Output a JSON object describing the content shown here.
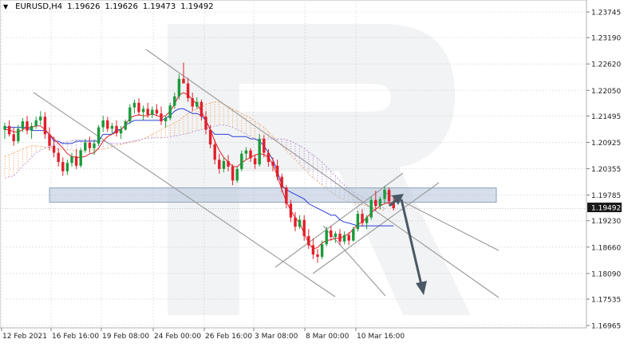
{
  "header": {
    "symbol": "EURUSD,H4",
    "open": "1.19626",
    "high": "1.19626",
    "low": "1.19473",
    "close": "1.19492"
  },
  "current_price_label": "1.19492",
  "chart_data": {
    "type": "candlestick",
    "symbol": "EURUSD",
    "timeframe": "H4",
    "y_ticks": [
      "1.23745",
      "1.23190",
      "1.22620",
      "1.22050",
      "1.21495",
      "1.20925",
      "1.20355",
      "1.19785",
      "1.19230",
      "1.18660",
      "1.18090",
      "1.17535",
      "1.16965"
    ],
    "x_ticks": [
      "12 Feb 2021",
      "16 Feb 16:00",
      "19 Feb 08:00",
      "24 Feb 00:00",
      "26 Feb 16:00",
      "3 Mar 08:00",
      "8 Mar 00:00",
      "10 Mar 16:00"
    ],
    "ylim": [
      1.16965,
      1.23745
    ],
    "last_price": 1.19492,
    "resistance_zone": [
      1.1963,
      1.1994
    ],
    "forecast": {
      "from": 1.1975,
      "to": 1.1765
    },
    "colors": {
      "bull": "#1a9a3a",
      "bear": "#e0202a",
      "kijun": "#2b3fd8",
      "tenkan": "#e0202a",
      "kumo_bull": "#f0a060",
      "kumo_bear": "#b28ad0",
      "channel": "#999999",
      "zone": "#b9c8dc",
      "arrow": "#4a5866"
    },
    "candles": [
      [
        1.212,
        1.2135,
        1.21,
        1.2128
      ],
      [
        1.2128,
        1.214,
        1.2105,
        1.211
      ],
      [
        1.211,
        1.2125,
        1.2085,
        1.2095
      ],
      [
        1.2095,
        1.213,
        1.209,
        1.2122
      ],
      [
        1.2122,
        1.2145,
        1.2115,
        1.2138
      ],
      [
        1.2138,
        1.215,
        1.211,
        1.2118
      ],
      [
        1.2118,
        1.2135,
        1.21,
        1.2128
      ],
      [
        1.2128,
        1.2148,
        1.2122,
        1.214
      ],
      [
        1.214,
        1.216,
        1.213,
        1.2148
      ],
      [
        1.2148,
        1.2158,
        1.21,
        1.211
      ],
      [
        1.211,
        1.2125,
        1.2075,
        1.2085
      ],
      [
        1.2085,
        1.2105,
        1.206,
        1.207
      ],
      [
        1.207,
        1.208,
        1.204,
        1.205
      ],
      [
        1.205,
        1.206,
        1.202,
        1.203
      ],
      [
        1.203,
        1.2055,
        1.2022,
        1.2048
      ],
      [
        1.2048,
        1.207,
        1.204,
        1.2062
      ],
      [
        1.2062,
        1.2078,
        1.2035,
        1.2042
      ],
      [
        1.2042,
        1.208,
        1.2038,
        1.2075
      ],
      [
        1.2075,
        1.21,
        1.207,
        1.2092
      ],
      [
        1.2092,
        1.2105,
        1.207,
        1.208
      ],
      [
        1.208,
        1.2098,
        1.2065,
        1.209
      ],
      [
        1.209,
        1.213,
        1.2085,
        1.2125
      ],
      [
        1.2125,
        1.215,
        1.2115,
        1.214
      ],
      [
        1.214,
        1.2148,
        1.2115,
        1.2122
      ],
      [
        1.2122,
        1.2135,
        1.211,
        1.2128
      ],
      [
        1.2128,
        1.214,
        1.2105,
        1.2112
      ],
      [
        1.2112,
        1.2128,
        1.21,
        1.212
      ],
      [
        1.212,
        1.2142,
        1.2118,
        1.2138
      ],
      [
        1.2138,
        1.2175,
        1.2132,
        1.2168
      ],
      [
        1.2168,
        1.2185,
        1.2155,
        1.2178
      ],
      [
        1.2178,
        1.2188,
        1.215,
        1.2158
      ],
      [
        1.2158,
        1.2172,
        1.214,
        1.2165
      ],
      [
        1.2165,
        1.2178,
        1.2145,
        1.2152
      ],
      [
        1.2152,
        1.217,
        1.2145,
        1.2163
      ],
      [
        1.2163,
        1.2175,
        1.215,
        1.2155
      ],
      [
        1.2155,
        1.217,
        1.213,
        1.2138
      ],
      [
        1.2138,
        1.215,
        1.2125,
        1.2145
      ],
      [
        1.2145,
        1.2178,
        1.214,
        1.2172
      ],
      [
        1.2172,
        1.22,
        1.2165,
        1.2192
      ],
      [
        1.2192,
        1.224,
        1.2185,
        1.223
      ],
      [
        1.223,
        1.2265,
        1.222,
        1.222
      ],
      [
        1.222,
        1.2232,
        1.218,
        1.2188
      ],
      [
        1.2188,
        1.22,
        1.216,
        1.217
      ],
      [
        1.217,
        1.219,
        1.2165,
        1.218
      ],
      [
        1.218,
        1.2185,
        1.214,
        1.2148
      ],
      [
        1.2148,
        1.216,
        1.211,
        1.212
      ],
      [
        1.212,
        1.213,
        1.208,
        1.2088
      ],
      [
        1.2088,
        1.2098,
        1.2045,
        1.2055
      ],
      [
        1.2055,
        1.2068,
        1.2025,
        1.2035
      ],
      [
        1.2035,
        1.206,
        1.2028,
        1.2052
      ],
      [
        1.2052,
        1.2065,
        1.203,
        1.204
      ],
      [
        1.204,
        1.2045,
        1.2,
        1.201
      ],
      [
        1.201,
        1.204,
        1.2005,
        1.2035
      ],
      [
        1.2035,
        1.2075,
        1.203,
        1.2068
      ],
      [
        1.2068,
        1.2082,
        1.2055,
        1.2075
      ],
      [
        1.2075,
        1.208,
        1.205,
        1.2058
      ],
      [
        1.2058,
        1.2065,
        1.2035,
        1.2045
      ],
      [
        1.2045,
        1.211,
        1.204,
        1.21
      ],
      [
        1.21,
        1.2108,
        1.206,
        1.207
      ],
      [
        1.207,
        1.2078,
        1.204,
        1.205
      ],
      [
        1.205,
        1.206,
        1.203,
        1.2042
      ],
      [
        1.2042,
        1.2055,
        1.201,
        1.2018
      ],
      [
        1.2018,
        1.2025,
        1.1985,
        1.1995
      ],
      [
        1.1995,
        1.2,
        1.195,
        1.196
      ],
      [
        1.196,
        1.1968,
        1.192,
        1.193
      ],
      [
        1.193,
        1.1942,
        1.19,
        1.191
      ],
      [
        1.191,
        1.1935,
        1.1905,
        1.1925
      ],
      [
        1.1925,
        1.1935,
        1.188,
        1.189
      ],
      [
        1.189,
        1.1905,
        1.1862,
        1.187
      ],
      [
        1.187,
        1.1885,
        1.184,
        1.185
      ],
      [
        1.185,
        1.1862,
        1.1832,
        1.1845
      ],
      [
        1.1845,
        1.188,
        1.184,
        1.1872
      ],
      [
        1.1872,
        1.191,
        1.1868,
        1.1902
      ],
      [
        1.1902,
        1.1912,
        1.188,
        1.1888
      ],
      [
        1.1888,
        1.19,
        1.1875,
        1.1895
      ],
      [
        1.1895,
        1.1905,
        1.187,
        1.1878
      ],
      [
        1.1878,
        1.19,
        1.1872,
        1.1892
      ],
      [
        1.1892,
        1.1898,
        1.187,
        1.188
      ],
      [
        1.188,
        1.191,
        1.1878,
        1.1905
      ],
      [
        1.1905,
        1.1945,
        1.19,
        1.1938
      ],
      [
        1.1938,
        1.1948,
        1.191,
        1.1918
      ],
      [
        1.1918,
        1.1935,
        1.1905,
        1.193
      ],
      [
        1.193,
        1.1975,
        1.1925,
        1.1968
      ],
      [
        1.1968,
        1.1988,
        1.1945,
        1.1955
      ],
      [
        1.1955,
        1.1975,
        1.1948,
        1.197
      ],
      [
        1.197,
        1.1998,
        1.196,
        1.199
      ],
      [
        1.199,
        1.1995,
        1.1958,
        1.1965
      ],
      [
        1.1965,
        1.1972,
        1.1945,
        1.195
      ]
    ],
    "kijun": [
      1.2125,
      1.2125,
      1.2125,
      1.2125,
      1.2125,
      1.2125,
      1.2118,
      1.2118,
      1.2118,
      1.2118,
      1.211,
      1.2095,
      1.2095,
      1.209,
      1.209,
      1.209,
      1.2095,
      1.2095,
      1.2095,
      1.2095,
      1.2095,
      1.2095,
      1.211,
      1.211,
      1.211,
      1.212,
      1.212,
      1.213,
      1.2135,
      1.214,
      1.214,
      1.214,
      1.214,
      1.214,
      1.214,
      1.214,
      1.2145,
      1.215,
      1.216,
      1.2165,
      1.2165,
      1.216,
      1.2155,
      1.2155,
      1.215,
      1.214,
      1.212,
      1.211,
      1.211,
      1.211,
      1.211,
      1.2105,
      1.2105,
      1.2105,
      1.2105,
      1.21,
      1.21,
      1.2095,
      1.2085,
      1.207,
      1.2055,
      1.203,
      1.2,
      1.199,
      1.1985,
      1.198,
      1.1975,
      1.197,
      1.196,
      1.1955,
      1.195,
      1.1945,
      1.194,
      1.1935,
      1.1935,
      1.1925,
      1.192,
      1.1918,
      1.1915,
      1.1912,
      1.1912,
      1.1912,
      1.1912,
      1.1912,
      1.1912,
      1.1912,
      1.1912,
      1.1912
    ],
    "tenkan": [
      1.212,
      1.212,
      1.2115,
      1.2115,
      1.212,
      1.2125,
      1.2125,
      1.2128,
      1.2128,
      1.212,
      1.211,
      1.21,
      1.209,
      1.208,
      1.2068,
      1.2062,
      1.206,
      1.206,
      1.2062,
      1.2068,
      1.207,
      1.208,
      1.2095,
      1.2105,
      1.211,
      1.2115,
      1.212,
      1.213,
      1.2145,
      1.215,
      1.2152,
      1.215,
      1.215,
      1.2155,
      1.215,
      1.2148,
      1.215,
      1.216,
      1.2175,
      1.2195,
      1.22,
      1.2195,
      1.2185,
      1.2175,
      1.216,
      1.214,
      1.212,
      1.2095,
      1.2075,
      1.206,
      1.205,
      1.204,
      1.204,
      1.2048,
      1.2055,
      1.206,
      1.2065,
      1.2068,
      1.2066,
      1.206,
      1.2045,
      1.202,
      1.199,
      1.1965,
      1.1945,
      1.193,
      1.1918,
      1.1895,
      1.1875,
      1.1862,
      1.1865,
      1.1875,
      1.188,
      1.1882,
      1.1885,
      1.1885,
      1.189,
      1.1895,
      1.1905,
      1.1915,
      1.192,
      1.193,
      1.194,
      1.1948,
      1.1955,
      1.196,
      1.1962,
      1.1962
    ],
    "kumo": [
      [
        1.2062,
        1.2015
      ],
      [
        1.2066,
        1.2018
      ],
      [
        1.207,
        1.202
      ],
      [
        1.2074,
        1.203
      ],
      [
        1.2078,
        1.2042
      ],
      [
        1.2082,
        1.205
      ],
      [
        1.2085,
        1.206
      ],
      [
        1.2085,
        1.207
      ],
      [
        1.2084,
        1.2075
      ],
      [
        1.2082,
        1.208
      ],
      [
        1.2082,
        1.2082
      ],
      [
        1.208,
        1.2086
      ],
      [
        1.2078,
        1.209
      ],
      [
        1.2078,
        1.2092
      ],
      [
        1.2076,
        1.2094
      ],
      [
        1.2076,
        1.2096
      ],
      [
        1.2074,
        1.2098
      ],
      [
        1.2074,
        1.2098
      ],
      [
        1.2075,
        1.2098
      ],
      [
        1.2076,
        1.2098
      ],
      [
        1.2076,
        1.2098
      ],
      [
        1.2077,
        1.2097
      ],
      [
        1.2078,
        1.2095
      ],
      [
        1.208,
        1.2092
      ],
      [
        1.2083,
        1.209
      ],
      [
        1.2086,
        1.209
      ],
      [
        1.2088,
        1.209
      ],
      [
        1.209,
        1.2092
      ],
      [
        1.2092,
        1.2094
      ],
      [
        1.2094,
        1.2096
      ],
      [
        1.2096,
        1.2098
      ],
      [
        1.21,
        1.21
      ],
      [
        1.2105,
        1.2102
      ],
      [
        1.211,
        1.2102
      ],
      [
        1.2115,
        1.2102
      ],
      [
        1.212,
        1.2102
      ],
      [
        1.2125,
        1.2103
      ],
      [
        1.213,
        1.2104
      ],
      [
        1.2135,
        1.2106
      ],
      [
        1.214,
        1.2108
      ],
      [
        1.2148,
        1.211
      ],
      [
        1.2155,
        1.2112
      ],
      [
        1.216,
        1.2115
      ],
      [
        1.2165,
        1.2118
      ],
      [
        1.217,
        1.212
      ],
      [
        1.2175,
        1.2122
      ],
      [
        1.2178,
        1.2125
      ],
      [
        1.218,
        1.2128
      ],
      [
        1.218,
        1.213
      ],
      [
        1.2175,
        1.213
      ],
      [
        1.217,
        1.2128
      ],
      [
        1.2165,
        1.2125
      ],
      [
        1.216,
        1.212
      ],
      [
        1.2155,
        1.2115
      ],
      [
        1.215,
        1.211
      ],
      [
        1.2145,
        1.2105
      ],
      [
        1.2138,
        1.21
      ],
      [
        1.2132,
        1.21
      ],
      [
        1.2125,
        1.21
      ],
      [
        1.2115,
        1.21
      ],
      [
        1.2105,
        1.21
      ],
      [
        1.2095,
        1.21
      ],
      [
        1.2085,
        1.21
      ],
      [
        1.2075,
        1.2098
      ],
      [
        1.2065,
        1.2095
      ],
      [
        1.2055,
        1.209
      ],
      [
        1.2045,
        1.2085
      ],
      [
        1.2035,
        1.208
      ],
      [
        1.2025,
        1.2072
      ],
      [
        1.2015,
        1.2065
      ],
      [
        1.2008,
        1.2058
      ],
      [
        1.2,
        1.205
      ],
      [
        1.1992,
        1.204
      ],
      [
        1.1985,
        1.203
      ],
      [
        1.1978,
        1.202
      ],
      [
        1.1972,
        1.201
      ],
      [
        1.1968,
        1.2
      ],
      [
        1.1965,
        1.1992
      ],
      [
        1.1962,
        1.1985
      ],
      [
        1.196,
        1.198
      ],
      [
        1.1958,
        1.1975
      ],
      [
        1.1955,
        1.197
      ],
      [
        1.1952,
        1.1965
      ],
      [
        1.195,
        1.196
      ],
      [
        1.1948,
        1.1955
      ],
      [
        1.1945,
        1.195
      ]
    ],
    "channel_lines": [
      {
        "x": [
          7,
          137
        ],
        "y": [
          1.2195,
          1.1855
        ]
      },
      {
        "x": [
          59,
          159
        ],
        "y": [
          1.2255,
          1.1925
        ]
      },
      {
        "x": [
          111,
          137
        ],
        "y": [
          1.184,
          1.178
        ]
      },
      {
        "x": [
          100,
          140
        ],
        "y": [
          1.1805,
          1.2005
        ]
      },
      {
        "x": [
          113,
          156
        ],
        "y": [
          1.1825,
          1.2005
        ]
      },
      {
        "x": [
          137,
          177
        ],
        "y": [
          1.1985,
          1.187
        ]
      }
    ]
  }
}
